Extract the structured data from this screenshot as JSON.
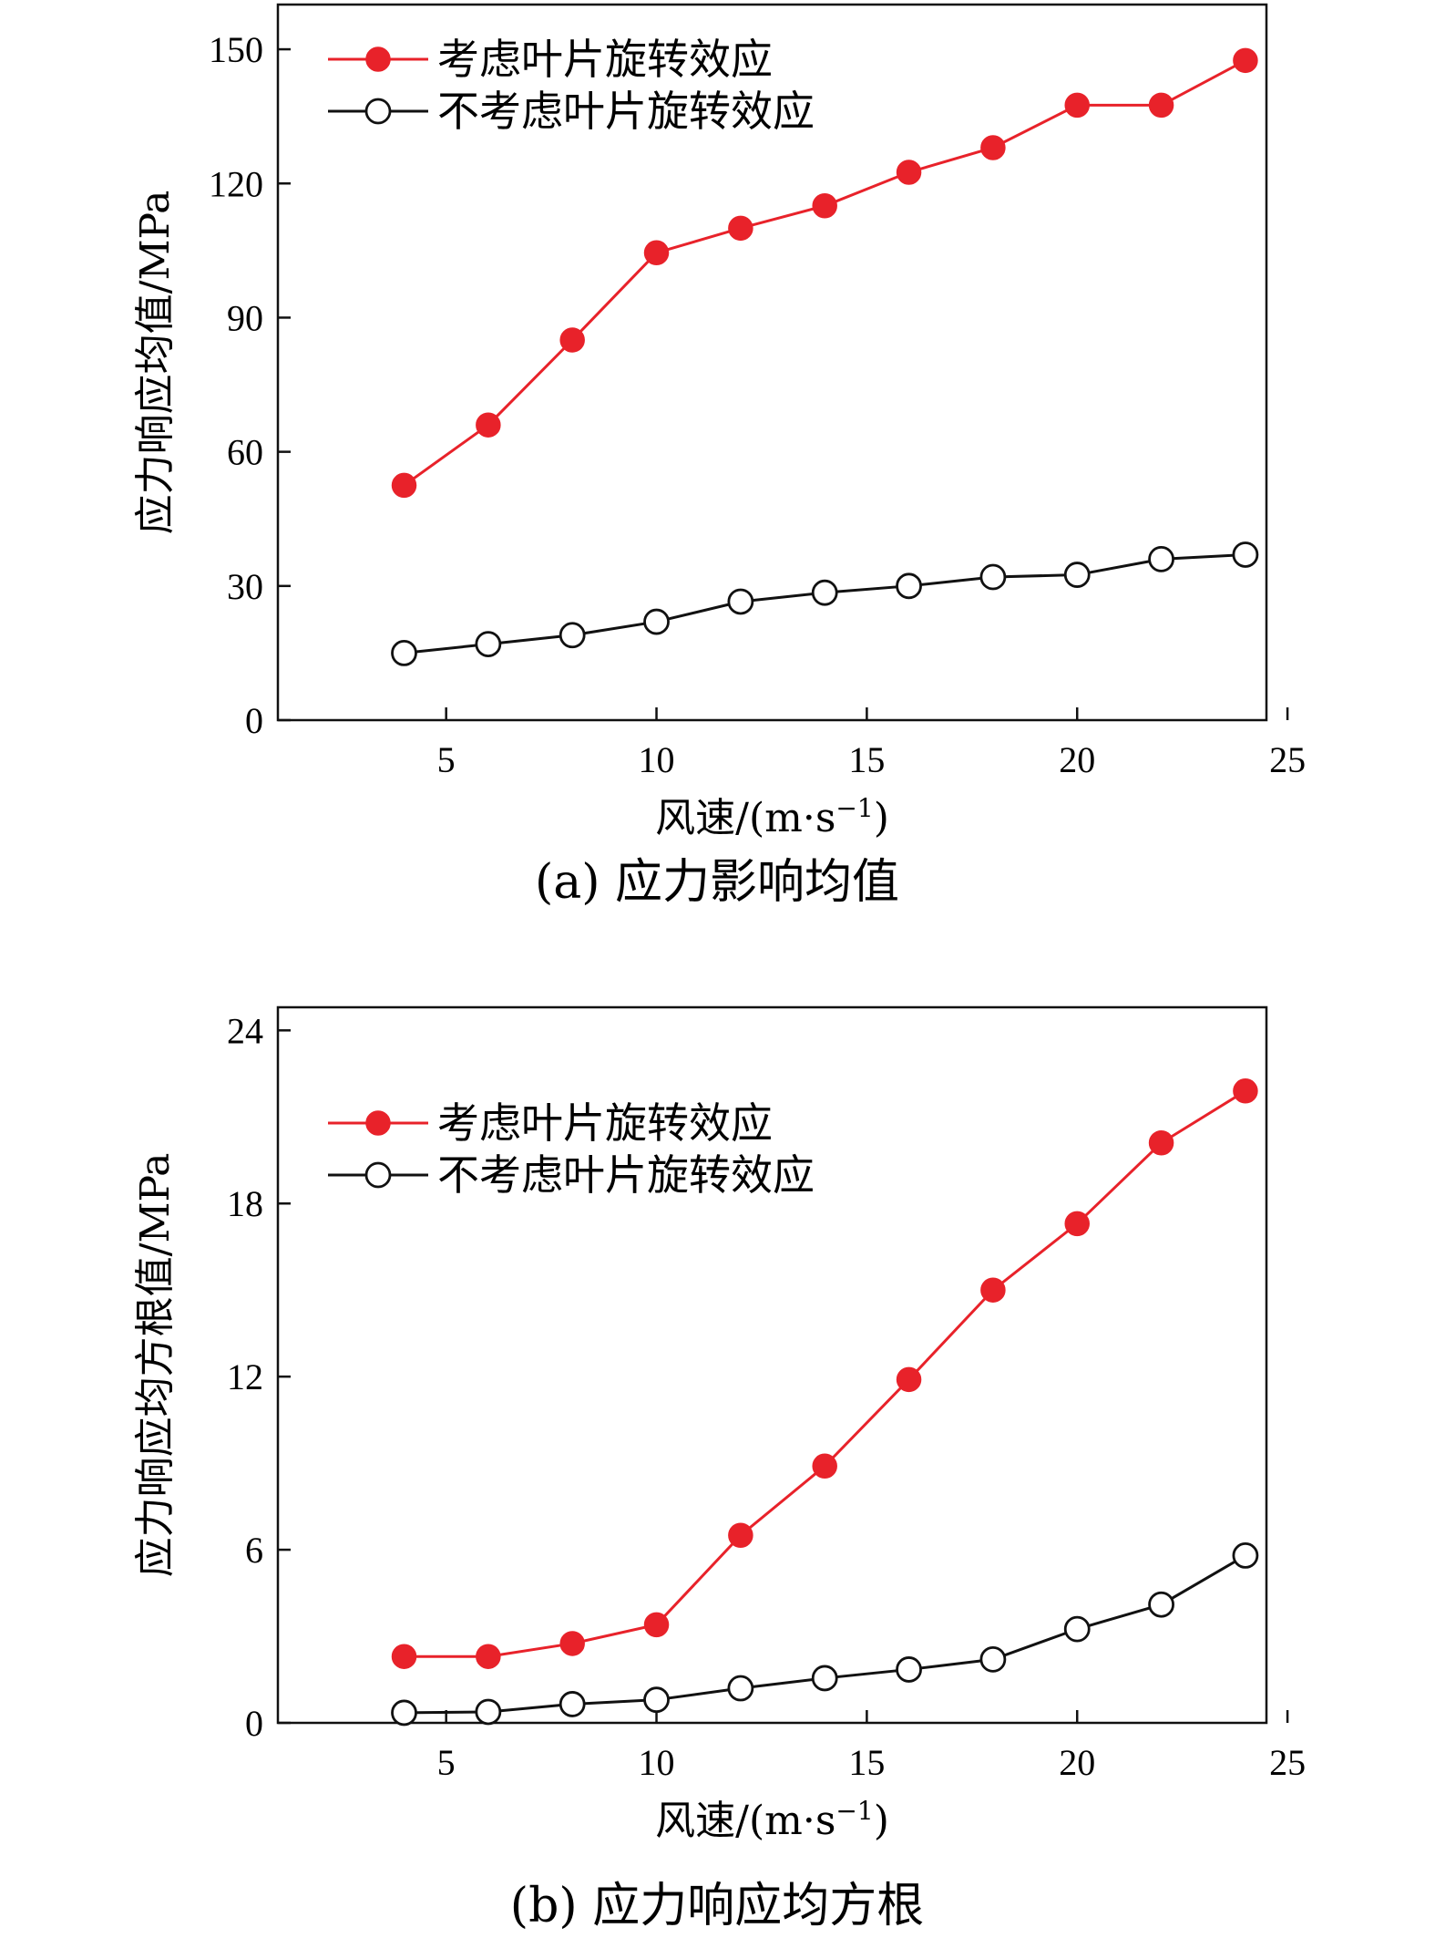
{
  "chart_data": [
    {
      "type": "line",
      "caption": "(a) 应力影响均值",
      "xlabel": "风速/(m·s",
      "xlabel_sup": "−1",
      "xlabel_close": ")",
      "ylabel": "应力响应均值/MPa",
      "xlim": [
        1,
        24.5
      ],
      "ylim": [
        0,
        160
      ],
      "xticks": [
        5,
        10,
        15,
        20,
        25
      ],
      "yticks": [
        0,
        30,
        60,
        90,
        120,
        150
      ],
      "grid": false,
      "legend_position": "top-left",
      "x": [
        4,
        6,
        8,
        10,
        12,
        14,
        16,
        18,
        20,
        22,
        24
      ],
      "series": [
        {
          "name": "考虑叶片旋转效应",
          "marker": "filled-circle",
          "color": "#e8222a",
          "values": [
            52.5,
            66,
            85,
            104.5,
            110,
            115,
            122.5,
            128,
            137.5,
            137.5,
            147.5
          ]
        },
        {
          "name": "不考虑叶片旋转效应",
          "marker": "open-circle",
          "color": "#111111",
          "values": [
            15,
            17,
            19,
            22,
            26.5,
            28.5,
            30,
            32,
            32.5,
            36,
            37
          ]
        }
      ]
    },
    {
      "type": "line",
      "caption": "(b) 应力响应均方根",
      "xlabel": "风速/(m·s",
      "xlabel_sup": "−1",
      "xlabel_close": ")",
      "ylabel": "应力响应均方根值/MPa",
      "xlim": [
        1,
        24.5
      ],
      "ylim": [
        0,
        24.8
      ],
      "xticks": [
        5,
        10,
        15,
        20,
        25
      ],
      "yticks": [
        0,
        6,
        12,
        18,
        24
      ],
      "grid": false,
      "legend_position": "top-left",
      "x": [
        4,
        6,
        8,
        10,
        12,
        14,
        16,
        18,
        20,
        22,
        24
      ],
      "series": [
        {
          "name": "考虑叶片旋转效应",
          "marker": "filled-circle",
          "color": "#e8222a",
          "values": [
            2.3,
            2.3,
            2.75,
            3.4,
            6.5,
            8.9,
            11.9,
            15.0,
            17.3,
            20.1,
            21.9
          ]
        },
        {
          "name": "不考虑叶片旋转效应",
          "marker": "open-circle",
          "color": "#111111",
          "values": [
            0.35,
            0.38,
            0.65,
            0.8,
            1.2,
            1.55,
            1.85,
            2.2,
            3.25,
            4.1,
            5.8
          ]
        }
      ]
    }
  ]
}
